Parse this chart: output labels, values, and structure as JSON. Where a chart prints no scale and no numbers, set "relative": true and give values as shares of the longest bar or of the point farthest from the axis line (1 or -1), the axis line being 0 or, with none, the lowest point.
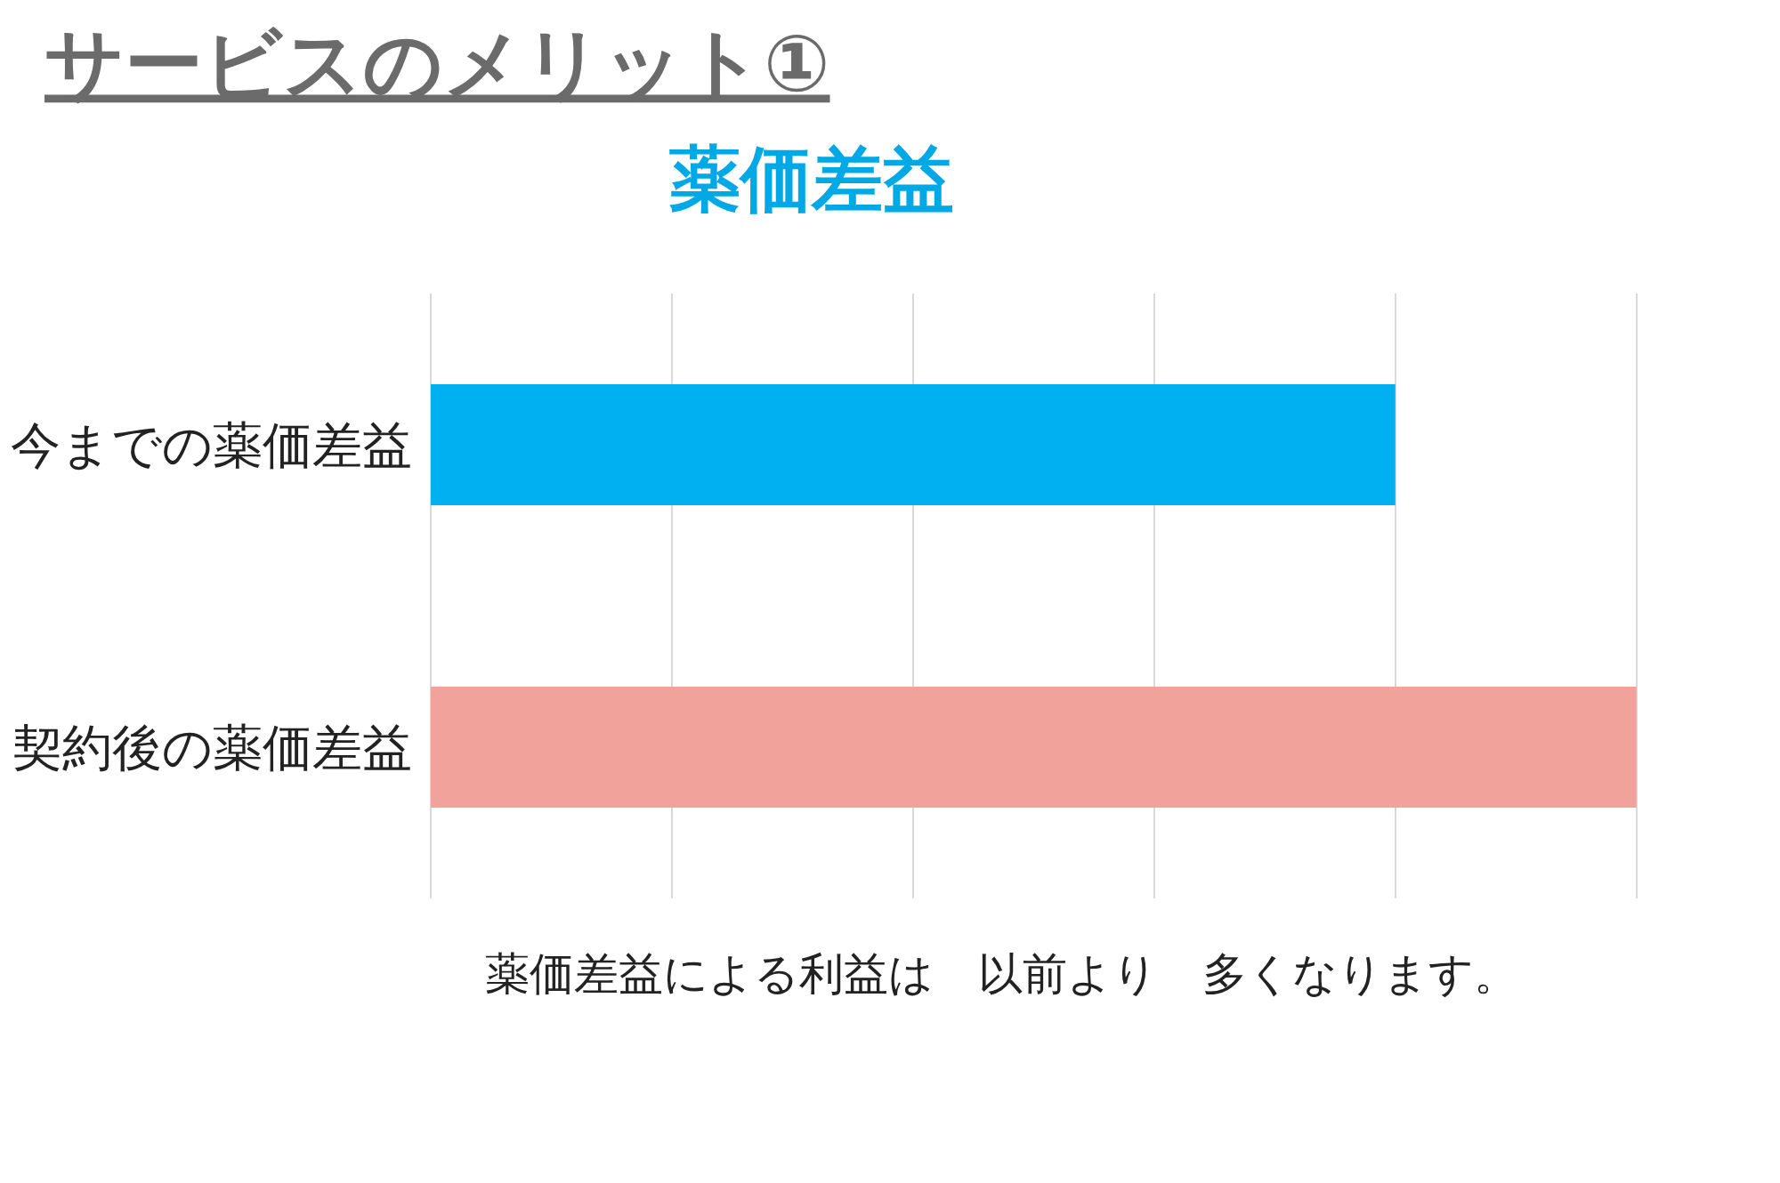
{
  "chart_data": {
    "type": "bar",
    "orientation": "horizontal",
    "relative": true,
    "title": "サービスのメリット①",
    "subtitle": "薬価差益",
    "categories": [
      "今までの薬価差益",
      "契約後の薬価差益"
    ],
    "values": [
      0.8,
      1
    ],
    "colors": [
      "#00b0f0",
      "#f1a29a"
    ],
    "grid": "x",
    "annotations": [
      "薬価差益による利益は　以前より　多くなります。"
    ]
  }
}
